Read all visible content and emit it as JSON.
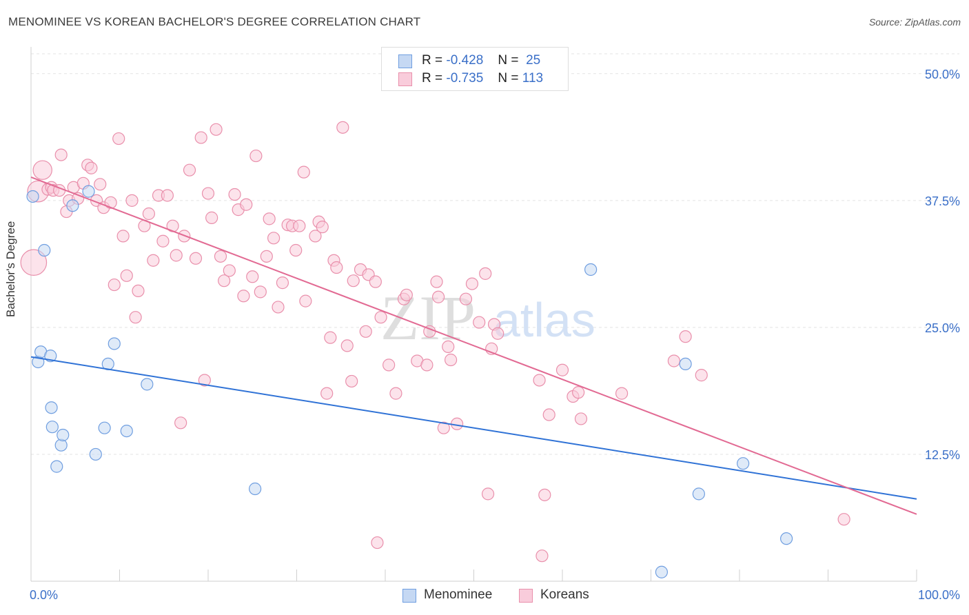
{
  "title": "MENOMINEE VS KOREAN BACHELOR'S DEGREE CORRELATION CHART",
  "source": "Source: ZipAtlas.com",
  "watermark": {
    "zip": "ZIP",
    "atlas": "atlas"
  },
  "legend": [
    {
      "r_label": "R =",
      "r_value": "-0.428",
      "n_label": "N =",
      "n_value": "25",
      "color": "#a9c4ee"
    },
    {
      "r_label": "R =",
      "r_value": "-0.735",
      "n_label": "N =",
      "n_value": "113",
      "color": "#f5b8cb"
    }
  ],
  "chart_data": {
    "type": "scatter",
    "title": "MENOMINEE VS KOREAN BACHELOR'S DEGREE CORRELATION CHART",
    "xlabel": "",
    "ylabel": "Bachelor's Degree",
    "xlim": [
      0,
      100
    ],
    "ylim": [
      0,
      52.5
    ],
    "x_tick_labels": [
      "0.0%",
      "100.0%"
    ],
    "y_ticks": [
      12.5,
      25.0,
      37.5,
      50.0
    ],
    "y_tick_labels": [
      "12.5%",
      "25.0%",
      "37.5%",
      "50.0%"
    ],
    "grid": true,
    "series": [
      {
        "name": "Menominee",
        "color": "#6f9ee0",
        "fill": "#c5d8f3",
        "trend": {
          "x": [
            0,
            100
          ],
          "y": [
            22.1,
            8.1
          ],
          "color": "#2f72d6"
        },
        "points": [
          {
            "x": 0.2,
            "y": 37.9,
            "s": 1
          },
          {
            "x": 0.8,
            "y": 21.6,
            "s": 1
          },
          {
            "x": 1.1,
            "y": 22.6,
            "s": 1
          },
          {
            "x": 1.5,
            "y": 32.6,
            "s": 1
          },
          {
            "x": 2.2,
            "y": 22.2,
            "s": 1
          },
          {
            "x": 2.3,
            "y": 17.1,
            "s": 1
          },
          {
            "x": 2.4,
            "y": 15.2,
            "s": 1
          },
          {
            "x": 2.9,
            "y": 11.3,
            "s": 1
          },
          {
            "x": 3.4,
            "y": 13.4,
            "s": 1
          },
          {
            "x": 3.6,
            "y": 14.4,
            "s": 1
          },
          {
            "x": 4.7,
            "y": 37.0,
            "s": 1
          },
          {
            "x": 6.5,
            "y": 38.4,
            "s": 1
          },
          {
            "x": 7.3,
            "y": 12.5,
            "s": 1
          },
          {
            "x": 8.3,
            "y": 15.1,
            "s": 1
          },
          {
            "x": 8.7,
            "y": 21.4,
            "s": 1
          },
          {
            "x": 9.4,
            "y": 23.4,
            "s": 1
          },
          {
            "x": 10.8,
            "y": 14.8,
            "s": 1
          },
          {
            "x": 13.1,
            "y": 19.4,
            "s": 1
          },
          {
            "x": 25.3,
            "y": 9.1,
            "s": 1
          },
          {
            "x": 63.2,
            "y": 30.7,
            "s": 1
          },
          {
            "x": 71.2,
            "y": 0.9,
            "s": 1
          },
          {
            "x": 73.9,
            "y": 21.4,
            "s": 1
          },
          {
            "x": 75.4,
            "y": 8.6,
            "s": 1
          },
          {
            "x": 80.4,
            "y": 11.6,
            "s": 1
          },
          {
            "x": 85.3,
            "y": 4.2,
            "s": 1
          }
        ]
      },
      {
        "name": "Koreans",
        "color": "#e98fab",
        "fill": "#f9ccdb",
        "trend": {
          "x": [
            0,
            100
          ],
          "y": [
            39.8,
            6.6
          ],
          "color": "#e26a93"
        },
        "points": [
          {
            "x": 0.3,
            "y": 31.4,
            "s": 2.2
          },
          {
            "x": 0.8,
            "y": 38.4,
            "s": 1.8
          },
          {
            "x": 1.3,
            "y": 40.5,
            "s": 1.6
          },
          {
            "x": 1.9,
            "y": 38.6,
            "s": 1
          },
          {
            "x": 2.3,
            "y": 38.8,
            "s": 1
          },
          {
            "x": 2.5,
            "y": 38.5,
            "s": 1
          },
          {
            "x": 3.2,
            "y": 38.5,
            "s": 1
          },
          {
            "x": 3.4,
            "y": 42.0,
            "s": 1
          },
          {
            "x": 4.0,
            "y": 36.4,
            "s": 1
          },
          {
            "x": 4.3,
            "y": 37.5,
            "s": 1
          },
          {
            "x": 4.8,
            "y": 38.8,
            "s": 1
          },
          {
            "x": 5.3,
            "y": 37.7,
            "s": 1
          },
          {
            "x": 5.9,
            "y": 39.2,
            "s": 1
          },
          {
            "x": 6.4,
            "y": 41.0,
            "s": 1
          },
          {
            "x": 6.8,
            "y": 40.7,
            "s": 1
          },
          {
            "x": 7.4,
            "y": 37.5,
            "s": 1
          },
          {
            "x": 7.8,
            "y": 39.1,
            "s": 1
          },
          {
            "x": 8.2,
            "y": 36.8,
            "s": 1
          },
          {
            "x": 9.0,
            "y": 37.3,
            "s": 1
          },
          {
            "x": 9.4,
            "y": 29.2,
            "s": 1
          },
          {
            "x": 9.9,
            "y": 43.6,
            "s": 1
          },
          {
            "x": 10.4,
            "y": 34.0,
            "s": 1
          },
          {
            "x": 10.8,
            "y": 30.1,
            "s": 1
          },
          {
            "x": 11.4,
            "y": 37.5,
            "s": 1
          },
          {
            "x": 11.8,
            "y": 26.0,
            "s": 1
          },
          {
            "x": 12.1,
            "y": 28.6,
            "s": 1
          },
          {
            "x": 12.8,
            "y": 35.0,
            "s": 1
          },
          {
            "x": 13.3,
            "y": 36.2,
            "s": 1
          },
          {
            "x": 13.8,
            "y": 31.6,
            "s": 1
          },
          {
            "x": 14.4,
            "y": 38.0,
            "s": 1
          },
          {
            "x": 14.9,
            "y": 33.5,
            "s": 1
          },
          {
            "x": 15.4,
            "y": 38.0,
            "s": 1
          },
          {
            "x": 16.0,
            "y": 35.0,
            "s": 1
          },
          {
            "x": 16.4,
            "y": 32.1,
            "s": 1
          },
          {
            "x": 16.9,
            "y": 15.6,
            "s": 1
          },
          {
            "x": 17.3,
            "y": 34.0,
            "s": 1
          },
          {
            "x": 17.9,
            "y": 40.5,
            "s": 1
          },
          {
            "x": 18.6,
            "y": 31.8,
            "s": 1
          },
          {
            "x": 19.2,
            "y": 43.7,
            "s": 1
          },
          {
            "x": 19.6,
            "y": 19.8,
            "s": 1
          },
          {
            "x": 20.0,
            "y": 38.2,
            "s": 1
          },
          {
            "x": 20.4,
            "y": 35.8,
            "s": 1
          },
          {
            "x": 20.9,
            "y": 44.5,
            "s": 1
          },
          {
            "x": 21.4,
            "y": 32.0,
            "s": 1
          },
          {
            "x": 21.8,
            "y": 29.6,
            "s": 1
          },
          {
            "x": 22.4,
            "y": 30.6,
            "s": 1
          },
          {
            "x": 23.0,
            "y": 38.1,
            "s": 1
          },
          {
            "x": 23.4,
            "y": 36.6,
            "s": 1
          },
          {
            "x": 24.0,
            "y": 28.1,
            "s": 1
          },
          {
            "x": 24.3,
            "y": 37.1,
            "s": 1
          },
          {
            "x": 25.0,
            "y": 30.0,
            "s": 1
          },
          {
            "x": 25.4,
            "y": 41.9,
            "s": 1
          },
          {
            "x": 25.9,
            "y": 28.5,
            "s": 1
          },
          {
            "x": 26.6,
            "y": 32.0,
            "s": 1
          },
          {
            "x": 26.9,
            "y": 35.7,
            "s": 1
          },
          {
            "x": 27.4,
            "y": 33.8,
            "s": 1
          },
          {
            "x": 27.9,
            "y": 27.0,
            "s": 1
          },
          {
            "x": 28.4,
            "y": 29.4,
            "s": 1
          },
          {
            "x": 29.0,
            "y": 35.1,
            "s": 1
          },
          {
            "x": 29.5,
            "y": 35.0,
            "s": 1
          },
          {
            "x": 29.9,
            "y": 32.6,
            "s": 1
          },
          {
            "x": 30.3,
            "y": 35.0,
            "s": 1
          },
          {
            "x": 30.8,
            "y": 40.3,
            "s": 1
          },
          {
            "x": 31.0,
            "y": 27.6,
            "s": 1
          },
          {
            "x": 32.1,
            "y": 34.0,
            "s": 1
          },
          {
            "x": 32.5,
            "y": 35.4,
            "s": 1
          },
          {
            "x": 32.9,
            "y": 34.9,
            "s": 1
          },
          {
            "x": 33.4,
            "y": 18.5,
            "s": 1
          },
          {
            "x": 33.8,
            "y": 24.0,
            "s": 1
          },
          {
            "x": 34.2,
            "y": 31.6,
            "s": 1
          },
          {
            "x": 34.5,
            "y": 30.9,
            "s": 1
          },
          {
            "x": 35.2,
            "y": 44.7,
            "s": 1
          },
          {
            "x": 35.7,
            "y": 23.2,
            "s": 1
          },
          {
            "x": 36.2,
            "y": 19.7,
            "s": 1
          },
          {
            "x": 36.4,
            "y": 29.6,
            "s": 1
          },
          {
            "x": 37.2,
            "y": 30.7,
            "s": 1
          },
          {
            "x": 37.8,
            "y": 24.6,
            "s": 1
          },
          {
            "x": 38.1,
            "y": 30.2,
            "s": 1
          },
          {
            "x": 38.9,
            "y": 29.5,
            "s": 1
          },
          {
            "x": 39.1,
            "y": 3.8,
            "s": 1
          },
          {
            "x": 39.5,
            "y": 26.0,
            "s": 1
          },
          {
            "x": 40.4,
            "y": 21.3,
            "s": 1
          },
          {
            "x": 41.2,
            "y": 18.5,
            "s": 1
          },
          {
            "x": 42.1,
            "y": 27.8,
            "s": 1
          },
          {
            "x": 42.4,
            "y": 28.2,
            "s": 1
          },
          {
            "x": 43.6,
            "y": 21.7,
            "s": 1
          },
          {
            "x": 44.7,
            "y": 21.3,
            "s": 1
          },
          {
            "x": 45.0,
            "y": 24.6,
            "s": 1
          },
          {
            "x": 45.8,
            "y": 29.5,
            "s": 1
          },
          {
            "x": 46.0,
            "y": 28.0,
            "s": 1
          },
          {
            "x": 46.6,
            "y": 15.1,
            "s": 1
          },
          {
            "x": 47.1,
            "y": 23.1,
            "s": 1
          },
          {
            "x": 47.4,
            "y": 21.8,
            "s": 1
          },
          {
            "x": 48.1,
            "y": 15.5,
            "s": 1
          },
          {
            "x": 49.1,
            "y": 27.8,
            "s": 1
          },
          {
            "x": 49.8,
            "y": 29.3,
            "s": 1
          },
          {
            "x": 50.6,
            "y": 25.5,
            "s": 1
          },
          {
            "x": 51.3,
            "y": 30.3,
            "s": 1
          },
          {
            "x": 51.6,
            "y": 8.6,
            "s": 1
          },
          {
            "x": 52.0,
            "y": 22.9,
            "s": 1
          },
          {
            "x": 52.3,
            "y": 25.3,
            "s": 1
          },
          {
            "x": 52.7,
            "y": 24.4,
            "s": 1
          },
          {
            "x": 57.4,
            "y": 19.8,
            "s": 1
          },
          {
            "x": 57.7,
            "y": 2.5,
            "s": 1
          },
          {
            "x": 58.0,
            "y": 8.5,
            "s": 1
          },
          {
            "x": 58.5,
            "y": 16.4,
            "s": 1
          },
          {
            "x": 60.0,
            "y": 20.8,
            "s": 1
          },
          {
            "x": 61.2,
            "y": 18.2,
            "s": 1
          },
          {
            "x": 61.8,
            "y": 18.6,
            "s": 1
          },
          {
            "x": 62.1,
            "y": 16.0,
            "s": 1
          },
          {
            "x": 66.7,
            "y": 18.5,
            "s": 1
          },
          {
            "x": 72.6,
            "y": 21.7,
            "s": 1
          },
          {
            "x": 73.9,
            "y": 24.1,
            "s": 1
          },
          {
            "x": 75.7,
            "y": 20.3,
            "s": 1
          },
          {
            "x": 91.8,
            "y": 6.1,
            "s": 1
          }
        ]
      }
    ]
  },
  "bottom_legend": [
    {
      "label": "Menominee",
      "color": "#c5d8f3",
      "border": "#6f9ee0"
    },
    {
      "label": "Koreans",
      "color": "#f9ccdb",
      "border": "#e98fab"
    }
  ]
}
